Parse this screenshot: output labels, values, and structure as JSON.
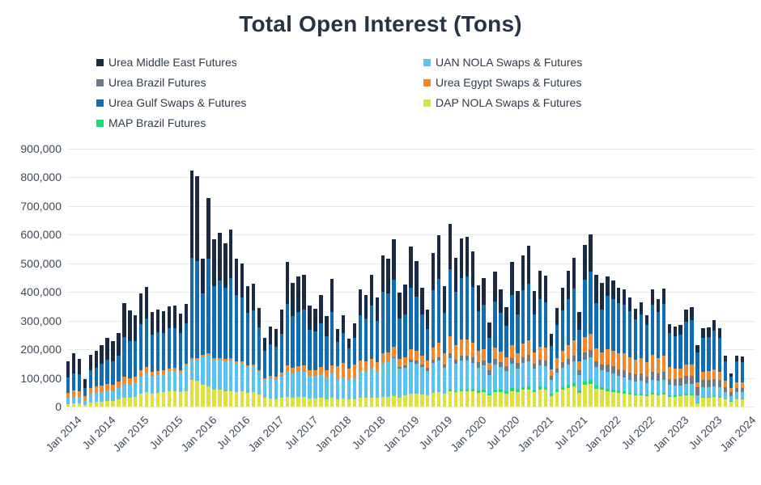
{
  "title": "Total Open Interest (Tons)",
  "legend": {
    "items": [
      {
        "label": "Urea Middle East Futures",
        "color": "#1b2a44"
      },
      {
        "label": "UAN NOLA Swaps & Futures",
        "color": "#56c3f4"
      },
      {
        "label": "Urea Brazil Futures",
        "color": "#6d7a88"
      },
      {
        "label": "Urea Egypt Swaps & Futures",
        "color": "#f6882c"
      },
      {
        "label": "Urea Gulf Swaps & Futures",
        "color": "#0f6cb6"
      },
      {
        "label": "DAP NOLA Swaps & Futures",
        "color": "#dfe23e"
      },
      {
        "label": "MAP Brazil Futures",
        "color": "#10df7c"
      }
    ]
  },
  "chart_data": {
    "type": "bar",
    "variant": "stacked",
    "title": "Total Open Interest (Tons)",
    "unit": "tons",
    "value_multiplier": 1000,
    "x_span": {
      "start": "Jan 2014",
      "end": "Jan 2024",
      "interval": "monthly",
      "count": 121
    },
    "x_tick_labels": [
      "Jan 2014",
      "Jul 2014",
      "Jan 2015",
      "Jul 2015",
      "Jan 2016",
      "Jul 2016",
      "Jan 2017",
      "Jul 2017",
      "Jan 2018",
      "Jul 2018",
      "Jan 2019",
      "Jul 2019",
      "Jan 2020",
      "Jul 2020",
      "Jan 2021",
      "Jul 2021",
      "Jan 2022",
      "Jul 2022",
      "Jan 2023",
      "Jul 2023",
      "Jan 2024"
    ],
    "x_tick_every": 6,
    "y_tick_labels": [
      "0",
      "100,000",
      "200,000",
      "300,000",
      "400,000",
      "500,000",
      "600,000",
      "700,000",
      "800,000",
      "900,000"
    ],
    "ylim": [
      0,
      900000
    ],
    "grid": "horizontal",
    "legend_position": "top",
    "stack_order_note": "series listed bottom to top",
    "series": [
      {
        "name": "DAP NOLA Swaps & Futures",
        "color": "#dfe23e",
        "values": [
          8,
          10,
          10,
          6,
          14,
          16,
          18,
          20,
          20,
          24,
          30,
          30,
          35,
          45,
          50,
          45,
          48,
          50,
          55,
          55,
          52,
          54,
          93,
          89,
          77,
          70,
          60,
          58,
          55,
          55,
          52,
          53,
          48,
          50,
          42,
          30,
          28,
          26,
          30,
          35,
          32,
          33,
          33,
          28,
          28,
          30,
          26,
          30,
          25,
          27,
          24,
          26,
          30,
          30,
          32,
          30,
          35,
          35,
          38,
          32,
          40,
          45,
          45,
          42,
          40,
          48,
          50,
          45,
          55,
          50,
          55,
          55,
          55,
          48,
          50,
          40,
          52,
          50,
          45,
          55,
          50,
          58,
          60,
          52,
          60,
          58,
          38,
          50,
          58,
          65,
          70,
          48,
          75,
          80,
          62,
          58,
          55,
          52,
          48,
          46,
          42,
          40,
          40,
          36,
          42,
          40,
          42,
          34,
          35,
          36,
          40,
          40,
          12,
          32,
          32,
          34,
          32,
          24,
          18,
          24,
          24
        ]
      },
      {
        "name": "MAP Brazil Futures",
        "color": "#10df7c",
        "values": [
          0,
          0,
          0,
          0,
          0,
          0,
          0,
          0,
          0,
          0,
          0,
          0,
          0,
          0,
          0,
          0,
          0,
          0,
          0,
          0,
          0,
          0,
          0,
          0,
          0,
          0,
          0,
          0,
          0,
          0,
          0,
          0,
          0,
          0,
          0,
          0,
          0,
          0,
          0,
          0,
          0,
          0,
          0,
          0,
          0,
          0,
          0,
          0,
          0,
          0,
          0,
          0,
          0,
          0,
          0,
          0,
          0,
          0,
          0,
          0,
          0,
          0,
          0,
          0,
          0,
          0,
          0,
          0,
          5,
          5,
          5,
          5,
          8,
          8,
          8,
          6,
          8,
          8,
          8,
          10,
          8,
          10,
          10,
          8,
          10,
          10,
          6,
          8,
          10,
          10,
          12,
          8,
          12,
          12,
          10,
          10,
          8,
          8,
          8,
          8,
          6,
          6,
          6,
          5,
          6,
          6,
          6,
          5,
          4,
          4,
          4,
          4,
          2,
          3,
          3,
          3,
          3,
          2,
          2,
          2,
          4
        ]
      },
      {
        "name": "UAN NOLA Swaps & Futures",
        "color": "#56c3f4",
        "values": [
          22,
          25,
          24,
          16,
          30,
          32,
          34,
          36,
          35,
          40,
          48,
          46,
          50,
          60,
          65,
          60,
          62,
          64,
          68,
          70,
          66,
          90,
          72,
          75,
          98,
          110,
          105,
          105,
          103,
          105,
          100,
          98,
          90,
          92,
          80,
          65,
          70,
          68,
          75,
          90,
          85,
          88,
          88,
          80,
          78,
          82,
          75,
          85,
          70,
          75,
          68,
          75,
          90,
          92,
          100,
          95,
          115,
          120,
          130,
          100,
          95,
          110,
          105,
          95,
          85,
          105,
          110,
          90,
          110,
          95,
          100,
          100,
          90,
          80,
          85,
          65,
          88,
          80,
          72,
          85,
          75,
          85,
          88,
          72,
          75,
          72,
          48,
          60,
          68,
          72,
          75,
          55,
          78,
          80,
          65,
          60,
          58,
          55,
          50,
          48,
          45,
          42,
          44,
          40,
          46,
          44,
          46,
          36,
          34,
          34,
          36,
          36,
          25,
          33,
          33,
          34,
          32,
          25,
          18,
          24,
          24
        ]
      },
      {
        "name": "Urea Brazil Futures",
        "color": "#6d7a88",
        "values": [
          0,
          0,
          0,
          0,
          0,
          0,
          0,
          0,
          0,
          0,
          0,
          0,
          0,
          0,
          0,
          0,
          0,
          0,
          0,
          0,
          0,
          0,
          0,
          0,
          0,
          0,
          0,
          0,
          0,
          0,
          0,
          0,
          0,
          0,
          0,
          0,
          0,
          0,
          0,
          0,
          0,
          0,
          0,
          0,
          0,
          0,
          0,
          0,
          0,
          0,
          0,
          0,
          0,
          0,
          0,
          0,
          0,
          0,
          5,
          5,
          8,
          10,
          10,
          10,
          10,
          12,
          12,
          12,
          15,
          15,
          18,
          18,
          20,
          18,
          18,
          15,
          18,
          18,
          16,
          20,
          18,
          20,
          22,
          18,
          20,
          20,
          14,
          16,
          18,
          20,
          22,
          16,
          24,
          25,
          20,
          20,
          25,
          25,
          25,
          25,
          25,
          24,
          25,
          24,
          26,
          25,
          26,
          22,
          24,
          25,
          28,
          28,
          30,
          25,
          25,
          26,
          25,
          18,
          12,
          16,
          14
        ]
      },
      {
        "name": "Urea Egypt Swaps & Futures",
        "color": "#f6882c",
        "values": [
          18,
          22,
          20,
          14,
          20,
          22,
          22,
          24,
          22,
          24,
          26,
          24,
          20,
          22,
          22,
          15,
          14,
          12,
          10,
          10,
          8,
          6,
          5,
          5,
          5,
          5,
          5,
          6,
          8,
          8,
          6,
          6,
          5,
          5,
          4,
          4,
          8,
          10,
          14,
          18,
          18,
          20,
          22,
          20,
          22,
          25,
          25,
          30,
          45,
          50,
          40,
          45,
          40,
          35,
          35,
          30,
          35,
          35,
          35,
          30,
          30,
          35,
          35,
          30,
          25,
          40,
          50,
          40,
          60,
          50,
          55,
          55,
          50,
          40,
          40,
          25,
          40,
          35,
          30,
          45,
          35,
          48,
          50,
          38,
          45,
          45,
          25,
          35,
          42,
          48,
          52,
          32,
          55,
          58,
          45,
          42,
          55,
          55,
          55,
          58,
          55,
          52,
          55,
          50,
          60,
          55,
          58,
          42,
          35,
          35,
          38,
          38,
          15,
          28,
          30,
          32,
          30,
          20,
          14,
          20,
          18
        ]
      },
      {
        "name": "Urea Gulf Swaps & Futures",
        "color": "#0f6cb6",
        "values": [
          55,
          60,
          58,
          30,
          62,
          66,
          75,
          85,
          80,
          90,
          140,
          130,
          125,
          160,
          170,
          130,
          135,
          130,
          140,
          140,
          130,
          140,
          350,
          340,
          215,
          330,
          250,
          270,
          250,
          280,
          230,
          225,
          185,
          190,
          150,
          95,
          110,
          105,
          135,
          215,
          180,
          190,
          195,
          140,
          135,
          155,
          120,
          185,
          85,
          105,
          70,
          95,
          160,
          150,
          185,
          145,
          215,
          205,
          235,
          140,
          150,
          215,
          190,
          145,
          110,
          200,
          225,
          140,
          235,
          185,
          215,
          220,
          195,
          140,
          155,
          90,
          160,
          135,
          110,
          175,
          135,
          185,
          200,
          135,
          165,
          158,
          80,
          115,
          140,
          160,
          180,
          110,
          200,
          215,
          160,
          150,
          185,
          180,
          175,
          172,
          160,
          140,
          152,
          130,
          175,
          160,
          180,
          118,
          115,
          118,
          150,
          155,
          105,
          120,
          120,
          135,
          118,
          70,
          40,
          72,
          72
        ]
      },
      {
        "name": "Urea Middle East Futures",
        "color": "#1b2a44",
        "values": [
          55,
          68,
          55,
          30,
          54,
          60,
          66,
          75,
          71,
          79,
          118,
          105,
          90,
          108,
          111,
          80,
          81,
          77,
          77,
          77,
          68,
          68,
          304,
          294,
          120,
          212,
          163,
          169,
          153,
          170,
          127,
          116,
          92,
          92,
          69,
          46,
          64,
          61,
          86,
          148,
          116,
          123,
          123,
          84,
          79,
          98,
          70,
          116,
          46,
          61,
          36,
          50,
          88,
          82,
          107,
          80,
          127,
          120,
          140,
          91,
          103,
          143,
          124,
          92,
          69,
          132,
          150,
          93,
          157,
          120,
          138,
          139,
          123,
          88,
          94,
          52,
          105,
          82,
          67,
          115,
          82,
          121,
          131,
          80,
          100,
          95,
          43,
          60,
          78,
          98,
          109,
          60,
          119,
          131,
          98,
          93,
          68,
          64,
          55,
          53,
          47,
          38,
          43,
          33,
          53,
          46,
          54,
          31,
          33,
          34,
          44,
          47,
          26,
          33,
          34,
          37,
          34,
          19,
          12,
          20,
          19
        ]
      }
    ]
  }
}
